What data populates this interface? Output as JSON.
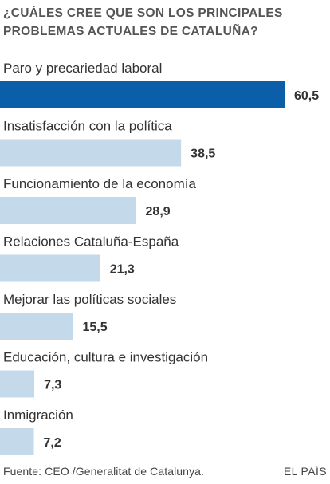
{
  "chart_data": {
    "type": "bar",
    "orientation": "horizontal",
    "title": "¿CUÁLES CREE QUE SON LOS PRINCIPALES PROBLEMAS ACTUALES DE CATALUÑA?",
    "categories": [
      "Paro y precariedad laboral",
      "Insatisfacción con la política",
      "Funcionamiento de la economía",
      "Relaciones Cataluña-España",
      "Mejorar las políticas sociales",
      "Educación, cultura e investigación",
      "Inmigración"
    ],
    "values": [
      60.5,
      38.5,
      28.9,
      21.3,
      15.5,
      7.3,
      7.2
    ],
    "value_labels": [
      "60,5",
      "38,5",
      "28,9",
      "21,3",
      "15,5",
      "7,3",
      "7,2"
    ],
    "xlim": [
      0,
      60.5
    ],
    "grid": false,
    "legend": "none",
    "colors": {
      "highlight": "#0b5ea8",
      "default": "#c4d9ea"
    }
  },
  "footer": {
    "source": "Fuente: CEO /Generalitat de Catalunya.",
    "brand": "EL PAÍS"
  }
}
